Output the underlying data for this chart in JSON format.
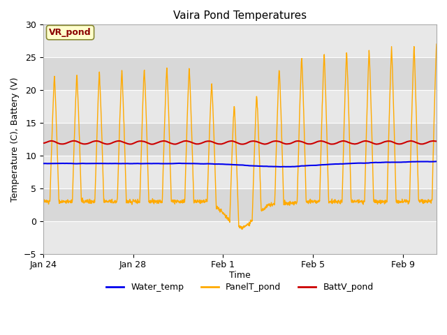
{
  "title": "Vaira Pond Temperatures",
  "xlabel": "Time",
  "ylabel": "Temperature (C), Battery (V)",
  "ylim": [
    -5,
    30
  ],
  "yticks": [
    -5,
    0,
    5,
    10,
    15,
    20,
    25,
    30
  ],
  "annotation": "VR_pond",
  "legend_labels": [
    "Water_temp",
    "PanelT_pond",
    "BattV_pond"
  ],
  "legend_colors": [
    "#0000ee",
    "#ffaa00",
    "#cc0000"
  ],
  "water_temp_color": "#0000ee",
  "panel_color": "#ffaa00",
  "batt_color": "#cc0000",
  "fig_bg_color": "#ffffff",
  "plot_bg_color": "#e8e8e8",
  "band1_color": "#d8d8d8",
  "band2_color": "#e8e8e8",
  "x_tick_labels": [
    "Jan 24",
    "Jan 28",
    "Feb 1",
    "Feb 5",
    "Feb 9"
  ],
  "x_tick_positions": [
    0,
    4,
    8,
    12,
    16
  ],
  "num_days": 17.5
}
